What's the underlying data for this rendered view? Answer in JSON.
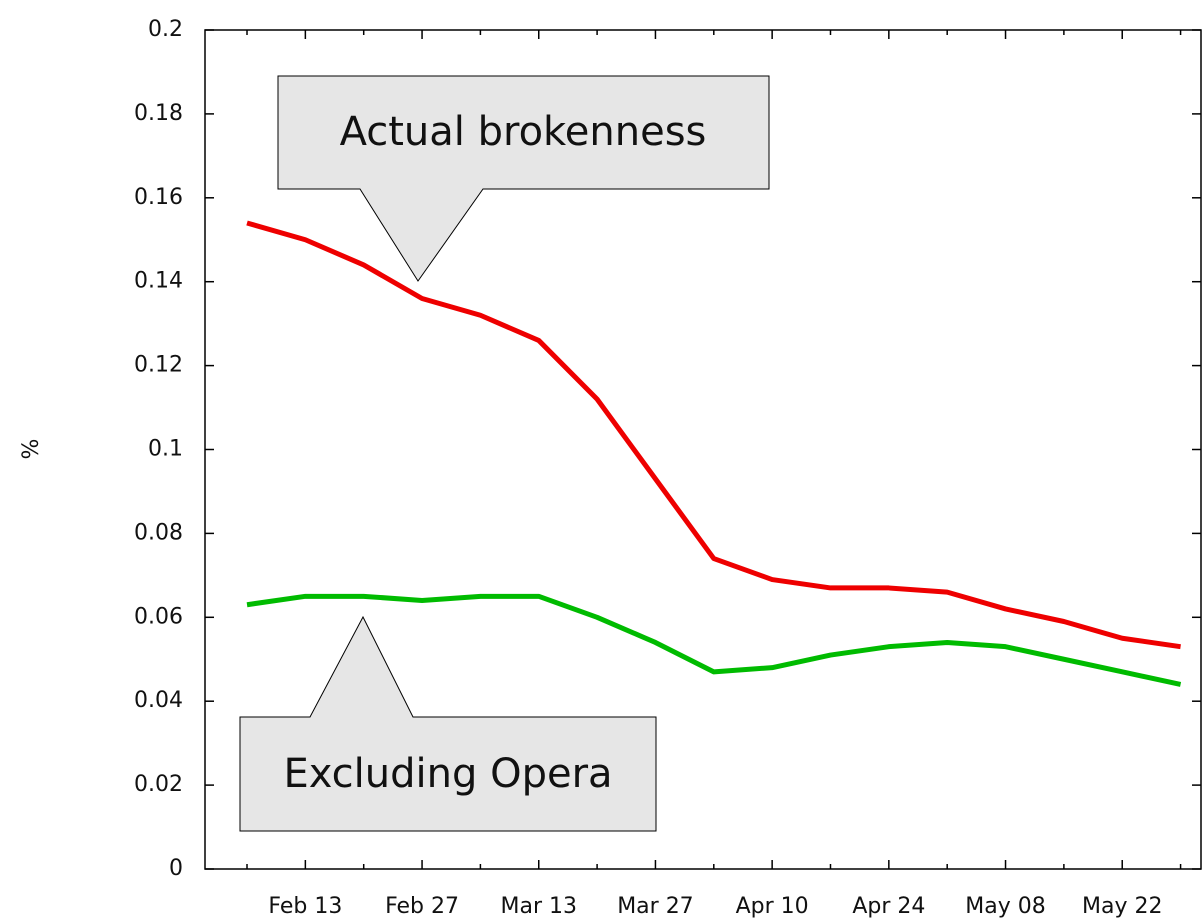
{
  "chart_data": {
    "type": "line",
    "ylabel": "%",
    "categories": [
      null,
      "Feb 13",
      null,
      "Feb 27",
      null,
      "Mar 13",
      null,
      "Mar 27",
      null,
      "Apr 10",
      null,
      "Apr 24",
      null,
      "May 08",
      null,
      "May 22",
      null
    ],
    "xlim": [
      -0.72,
      16.35
    ],
    "series": [
      {
        "color": "#ee0000",
        "values": [
          0.154,
          0.15,
          0.144,
          0.136,
          0.132,
          0.126,
          0.112,
          0.093,
          0.074,
          0.069,
          0.067,
          0.067,
          0.066,
          0.062,
          0.059,
          0.055,
          0.053
        ]
      },
      {
        "color": "#00bb00",
        "values": [
          0.063,
          0.065,
          0.065,
          0.064,
          0.065,
          0.065,
          0.06,
          0.054,
          0.047,
          0.048,
          0.051,
          0.053,
          0.054,
          0.053,
          0.05,
          0.047,
          0.044
        ]
      }
    ],
    "ylim": [
      0,
      0.2
    ],
    "yticks": [
      0,
      0.02,
      0.04,
      0.06,
      0.08,
      0.1,
      0.12,
      0.14,
      0.16,
      0.18,
      0.2
    ],
    "annotations": [
      "Actual brokenness",
      "Excluding Opera"
    ]
  }
}
